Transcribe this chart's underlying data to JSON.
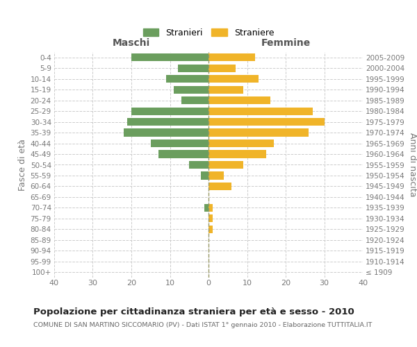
{
  "age_groups": [
    "100+",
    "95-99",
    "90-94",
    "85-89",
    "80-84",
    "75-79",
    "70-74",
    "65-69",
    "60-64",
    "55-59",
    "50-54",
    "45-49",
    "40-44",
    "35-39",
    "30-34",
    "25-29",
    "20-24",
    "15-19",
    "10-14",
    "5-9",
    "0-4"
  ],
  "birth_years": [
    "≤ 1909",
    "1910-1914",
    "1915-1919",
    "1920-1924",
    "1925-1929",
    "1930-1934",
    "1935-1939",
    "1940-1944",
    "1945-1949",
    "1950-1954",
    "1955-1959",
    "1960-1964",
    "1965-1969",
    "1970-1974",
    "1975-1979",
    "1980-1984",
    "1985-1989",
    "1990-1994",
    "1995-1999",
    "2000-2004",
    "2005-2009"
  ],
  "males": [
    0,
    0,
    0,
    0,
    0,
    0,
    1,
    0,
    0,
    2,
    5,
    13,
    15,
    22,
    21,
    20,
    7,
    9,
    11,
    8,
    20
  ],
  "females": [
    0,
    0,
    0,
    0,
    1,
    1,
    1,
    0,
    6,
    4,
    9,
    15,
    17,
    26,
    30,
    27,
    16,
    9,
    13,
    7,
    12
  ],
  "male_color": "#6b9e5e",
  "female_color": "#f0b429",
  "background_color": "#ffffff",
  "grid_color": "#cccccc",
  "title": "Popolazione per cittadinanza straniera per età e sesso - 2010",
  "subtitle": "COMUNE DI SAN MARTINO SICCOMARIO (PV) - Dati ISTAT 1° gennaio 2010 - Elaborazione TUTTITALIA.IT",
  "left_label": "Maschi",
  "right_label": "Femmine",
  "ylabel_left": "Fasce di età",
  "ylabel_right": "Anni di nascita",
  "legend_stranieri": "Stranieri",
  "legend_straniere": "Straniere",
  "xlim": 40
}
